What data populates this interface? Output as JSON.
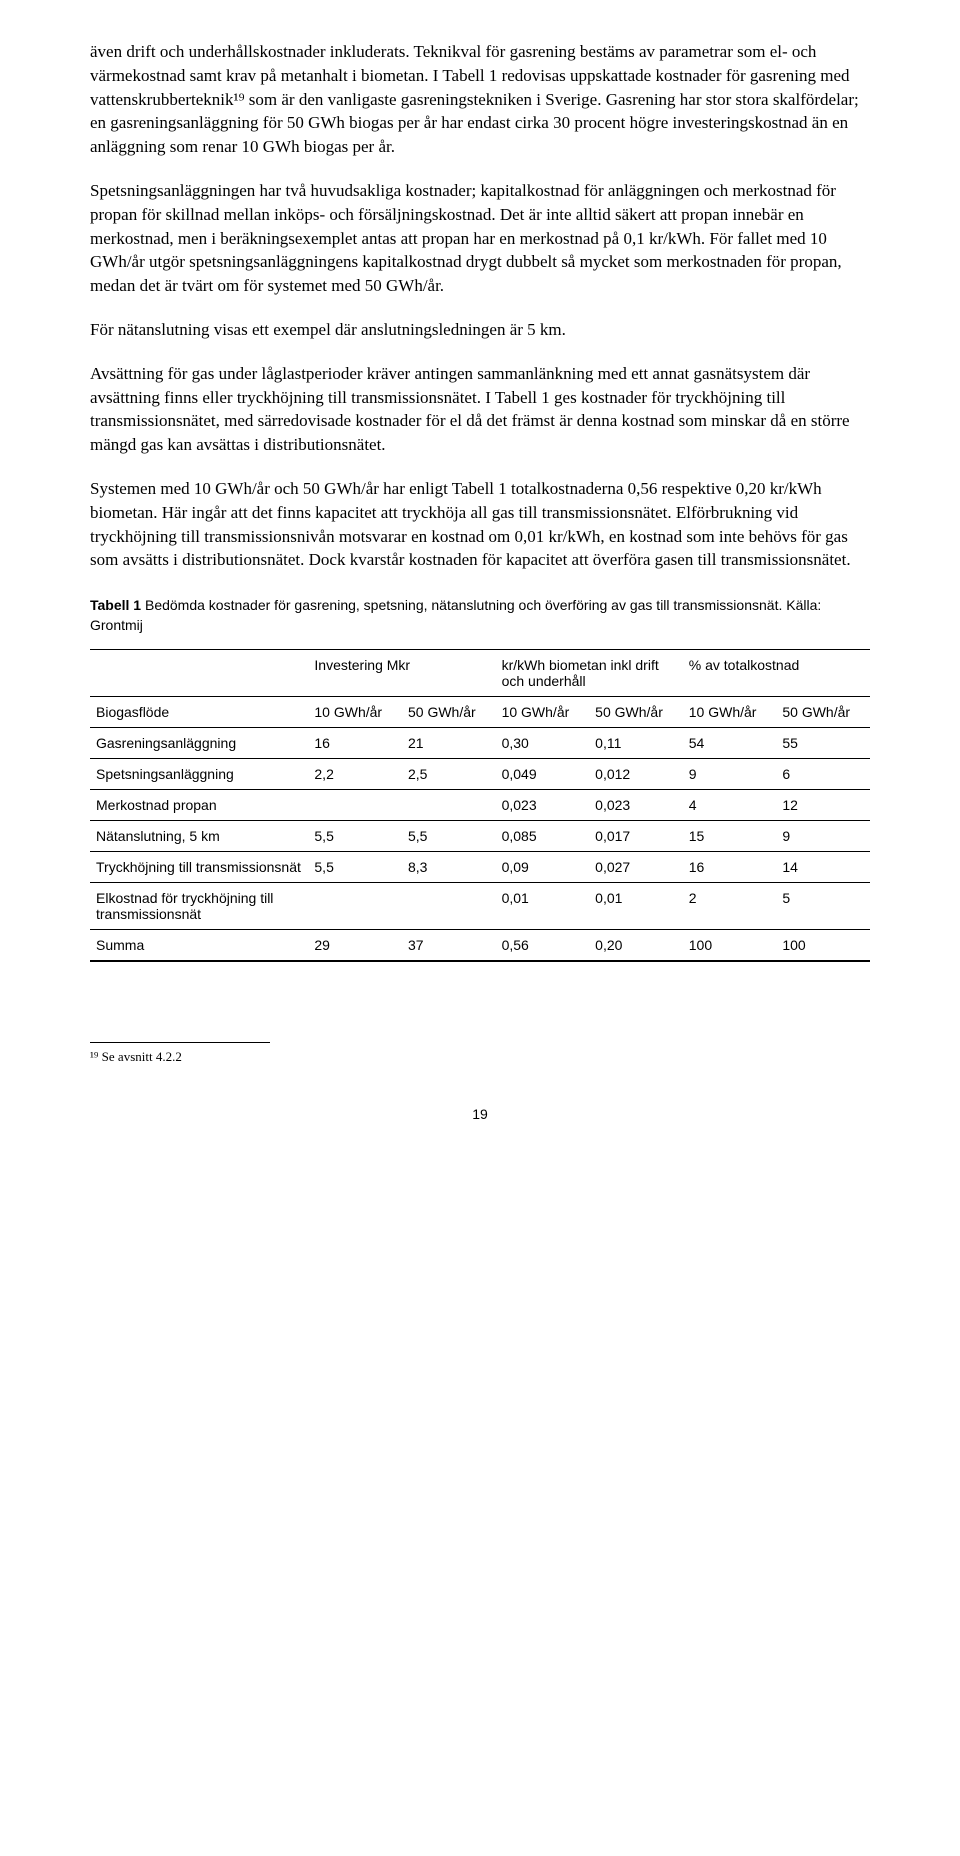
{
  "paragraphs": {
    "p1": "även drift och underhållskostnader inkluderats. Teknikval för gasrening bestäms av parametrar som el- och värmekostnad samt krav på metanhalt i biometan. I Tabell 1 redovisas uppskattade kostnader för gasrening med vattenskrubberteknik¹⁹ som är den vanligaste gasreningstekniken i Sverige. Gasrening har stor stora skalfördelar; en gasreningsanläggning för 50 GWh biogas per år har endast cirka 30 procent högre investeringskostnad än en anläggning som renar 10 GWh biogas per år.",
    "p2": "Spetsningsanläggningen har två huvudsakliga kostnader; kapitalkostnad för anläggningen och merkostnad för propan för skillnad mellan inköps- och försäljningskostnad. Det är inte alltid säkert att propan innebär en merkostnad, men i beräkningsexemplet antas att propan har en merkostnad på 0,1 kr/kWh. För fallet med 10 GWh/år utgör spetsningsanläggningens kapitalkostnad drygt dubbelt så mycket som merkostnaden för propan, medan det är tvärt om för systemet med 50 GWh/år.",
    "p3": "För nätanslutning visas ett exempel där anslutningsledningen är 5 km.",
    "p4": "Avsättning för gas under låglastperioder kräver antingen sammanlänkning med ett annat gasnätsystem där avsättning finns eller tryckhöjning till transmissionsnätet. I Tabell 1 ges kostnader för tryckhöjning till transmissionsnätet, med särredovisade kostnader för el då det främst är denna kostnad som minskar då en större mängd gas kan avsättas i distributionsnätet.",
    "p5": "Systemen med 10 GWh/år och 50 GWh/år har enligt Tabell 1 totalkostnaderna 0,56 respektive 0,20 kr/kWh biometan. Här ingår att det finns kapacitet att tryckhöja all gas till transmissionsnätet. Elförbrukning vid tryckhöjning till transmissionsnivån motsvarar en kostnad om 0,01 kr/kWh, en kostnad som inte behövs för gas som avsätts i distributionsnätet. Dock kvarstår kostnaden för kapacitet att överföra gasen till transmissionsnätet."
  },
  "tableCaption": {
    "bold": "Tabell 1",
    "rest": " Bedömda kostnader för gasrening, spetsning, nätanslutning och överföring av gas till transmissionsnät. Källa: Grontmij"
  },
  "table": {
    "headerGroups": [
      "",
      "Investering Mkr",
      "kr/kWh biometan inkl drift och underhåll",
      "% av totalkostnad"
    ],
    "subHeader": [
      "Biogasflöde",
      "10 GWh/år",
      "50 GWh/år",
      "10 GWh/år",
      "50 GWh/år",
      "10 GWh/år",
      "50 GWh/år"
    ],
    "rows": [
      [
        "Gasreningsanläggning",
        "16",
        "21",
        "0,30",
        "0,11",
        "54",
        "55"
      ],
      [
        "Spetsningsanläggning",
        "2,2",
        "2,5",
        "0,049",
        "0,012",
        "9",
        "6"
      ],
      [
        "Merkostnad propan",
        "",
        "",
        "0,023",
        "0,023",
        "4",
        "12"
      ],
      [
        "Nätanslutning, 5 km",
        "5,5",
        "5,5",
        "0,085",
        "0,017",
        "15",
        "9"
      ],
      [
        "Tryckhöjning till transmissionsnät",
        "5,5",
        "8,3",
        "0,09",
        "0,027",
        "16",
        "14"
      ],
      [
        "Elkostnad för tryckhöjning till transmissionsnät",
        "",
        "",
        "0,01",
        "0,01",
        "2",
        "5"
      ],
      [
        "Summa",
        "29",
        "37",
        "0,56",
        "0,20",
        "100",
        "100"
      ]
    ]
  },
  "footnote": "¹⁹ Se avsnitt 4.2.2",
  "pageNumber": "19",
  "colWidths": [
    "28%",
    "12%",
    "12%",
    "12%",
    "12%",
    "12%",
    "12%"
  ]
}
